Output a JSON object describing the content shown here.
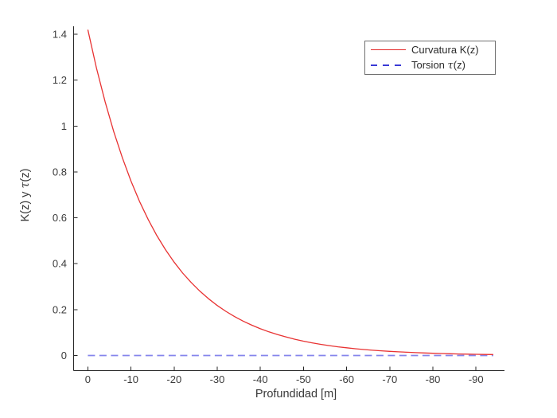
{
  "figure": {
    "background": "#ffffff",
    "axis_color": "#262626",
    "tick_label_color": "#3a3a3a",
    "label_color": "#383838",
    "legend_border_color": "#707070"
  },
  "chart_data": {
    "type": "line",
    "title": "",
    "xlabel": "Profundidad [m]",
    "ylabel": "K(z) y τ(z)",
    "xlim": [
      3.3,
      -96.6
    ],
    "ylim": [
      -0.066,
      1.435
    ],
    "x_ticks": [
      0,
      -10,
      -20,
      -30,
      -40,
      -50,
      -60,
      -70,
      -80,
      -90
    ],
    "x_tick_labels": [
      "0",
      "-10",
      "-20",
      "-30",
      "-40",
      "-50",
      "-60",
      "-70",
      "-80",
      "-90"
    ],
    "y_ticks": [
      0,
      0.2,
      0.4,
      0.6,
      0.8,
      1,
      1.2,
      1.4
    ],
    "y_tick_labels": [
      "0",
      "0.2",
      "0.4",
      "0.6",
      "0.8",
      "1",
      "1.2",
      "1.4"
    ],
    "grid": false,
    "legend_position": "top-right",
    "series": [
      {
        "name": "Curvatura K(z)",
        "line_style": "solid",
        "color": "#e83232",
        "legend_color": "#e32727",
        "x": [
          0,
          -2,
          -4,
          -6,
          -8,
          -10,
          -12,
          -14,
          -16,
          -18,
          -20,
          -22,
          -24,
          -26,
          -28,
          -30,
          -32,
          -34,
          -36,
          -38,
          -40,
          -42,
          -44,
          -46,
          -48,
          -50,
          -52,
          -54,
          -56,
          -58,
          -60,
          -62,
          -64,
          -66,
          -68,
          -70,
          -72,
          -74,
          -76,
          -78,
          -80,
          -82,
          -84,
          -86,
          -88,
          -90,
          -92,
          -94
        ],
        "y": [
          1.42,
          1.2532,
          1.1061,
          0.9762,
          0.8615,
          0.7604,
          0.6711,
          0.5923,
          0.5227,
          0.4613,
          0.4072,
          0.3593,
          0.3171,
          0.2799,
          0.247,
          0.218,
          0.1924,
          0.1698,
          0.1499,
          0.1323,
          0.1167,
          0.103,
          0.0909,
          0.0803,
          0.0708,
          0.0625,
          0.0552,
          0.0487,
          0.043,
          0.0379,
          0.0335,
          0.0295,
          0.0261,
          0.023,
          0.0203,
          0.0179,
          0.0158,
          0.014,
          0.0123,
          0.0109,
          0.0096,
          0.0085,
          0.0075,
          0.0066,
          0.0058,
          0.0051,
          0.0045,
          0.004
        ]
      },
      {
        "name": "Torsion τ(z)",
        "line_style": "dashed",
        "color": "#8585ec",
        "legend_color": "#3a3ad6",
        "x": [
          0,
          -94
        ],
        "y": [
          0,
          0
        ]
      }
    ]
  }
}
